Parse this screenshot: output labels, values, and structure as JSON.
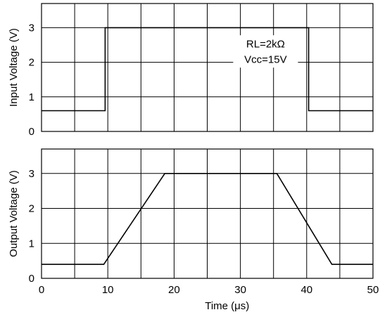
{
  "chart_data": [
    {
      "type": "line",
      "ylabel": "Input Voltage (V)",
      "xlim": [
        0,
        50
      ],
      "ylim": [
        0,
        3.7
      ],
      "xticks": [
        0,
        5,
        10,
        15,
        20,
        25,
        30,
        35,
        40,
        45,
        50
      ],
      "yticks": [
        0,
        1,
        2,
        3
      ],
      "ytick_labels": [
        "0",
        "1",
        "2",
        "3"
      ],
      "grid": true,
      "annotations": [
        "RL=2kΩ",
        "Vcc=15V"
      ],
      "series": [
        {
          "x": [
            0,
            9.6,
            9.6,
            40.3,
            40.3,
            50
          ],
          "y": [
            0.6,
            0.6,
            3.0,
            3.0,
            0.6,
            0.6
          ]
        }
      ]
    },
    {
      "type": "line",
      "ylabel": "Output Voltage (V)",
      "xlabel": "Time (μs)",
      "xlim": [
        0,
        50
      ],
      "ylim": [
        0,
        3.7
      ],
      "xticks": [
        0,
        5,
        10,
        15,
        20,
        25,
        30,
        35,
        40,
        45,
        50
      ],
      "yticks": [
        0,
        1,
        2,
        3
      ],
      "ytick_labels": [
        "0",
        "1",
        "2",
        "3"
      ],
      "xtick_labels": [
        "0",
        "10",
        "20",
        "30",
        "40",
        "50"
      ],
      "grid": true,
      "series": [
        {
          "x": [
            0,
            9.4,
            18.6,
            35.5,
            43.8,
            50
          ],
          "y": [
            0.4,
            0.4,
            3.0,
            3.0,
            0.4,
            0.4
          ]
        }
      ]
    }
  ]
}
